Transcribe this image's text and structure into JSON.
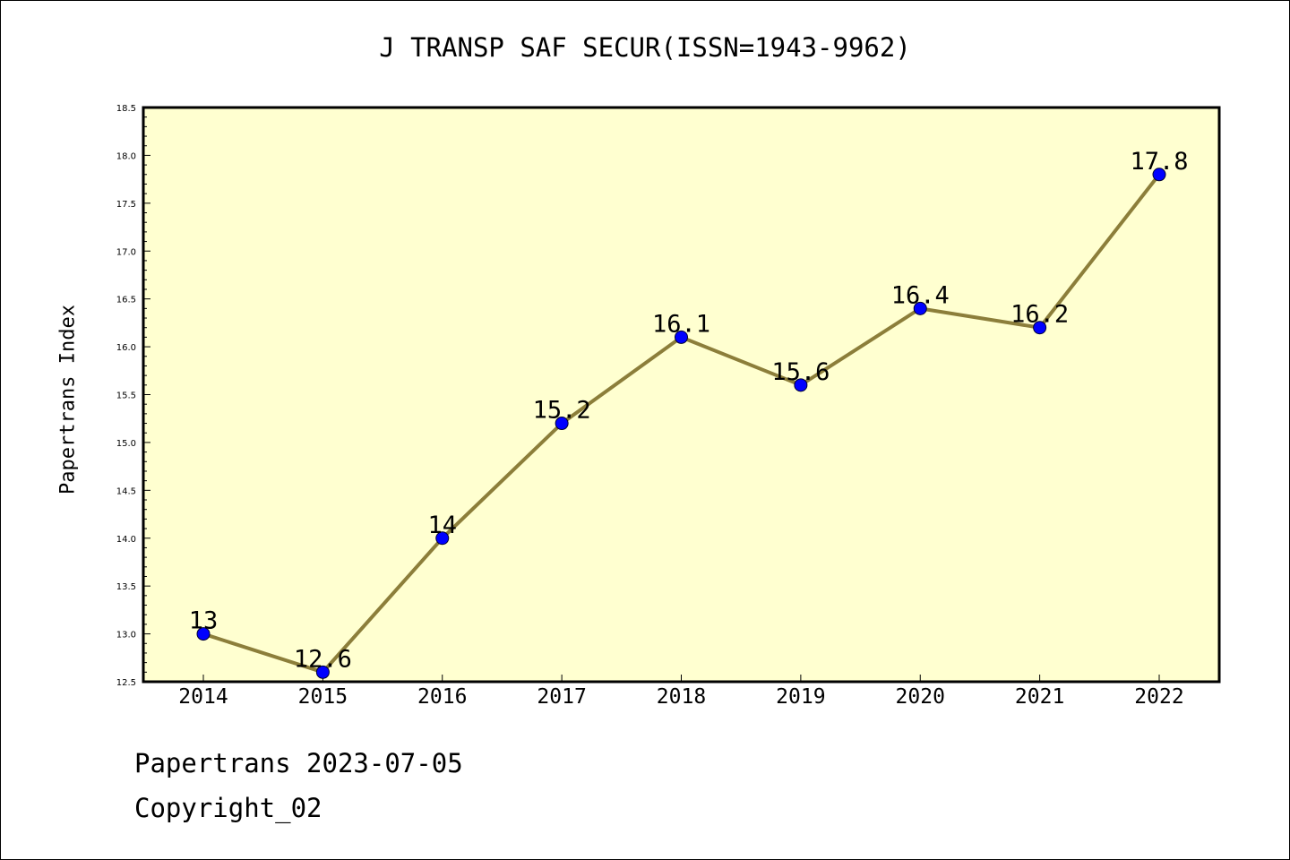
{
  "title": "J TRANSP SAF SECUR(ISSN=1943-9962)",
  "footer": {
    "line1": "Papertrans 2023-07-05",
    "line2": "Copyright_02"
  },
  "colors": {
    "plot_bg": "#ffffd0",
    "line": "#8c7e3a",
    "marker": "#0000ff",
    "frame": "#000000"
  },
  "chart_data": {
    "type": "line",
    "title": "J TRANSP SAF SECUR(ISSN=1943-9962)",
    "xlabel": "",
    "ylabel": "Papertrans Index",
    "x": [
      "2014",
      "2015",
      "2016",
      "2017",
      "2018",
      "2019",
      "2020",
      "2021",
      "2022"
    ],
    "series": [
      {
        "values": [
          13,
          12.6,
          14,
          15.2,
          16.1,
          15.6,
          16.4,
          16.2,
          17.8
        ],
        "data_labels": [
          "13",
          "12.6",
          "14",
          "15.2",
          "16.1",
          "15.6",
          "16.4",
          "16.2",
          "17.8"
        ]
      }
    ],
    "ylim": [
      12.5,
      18.5
    ],
    "yticks": [
      "12.5",
      "13.0",
      "13.5",
      "14.0",
      "14.5",
      "15.0",
      "15.5",
      "16.0",
      "16.5",
      "17.0",
      "17.5",
      "18.0",
      "18.5"
    ],
    "grid": false,
    "legend": "none"
  }
}
